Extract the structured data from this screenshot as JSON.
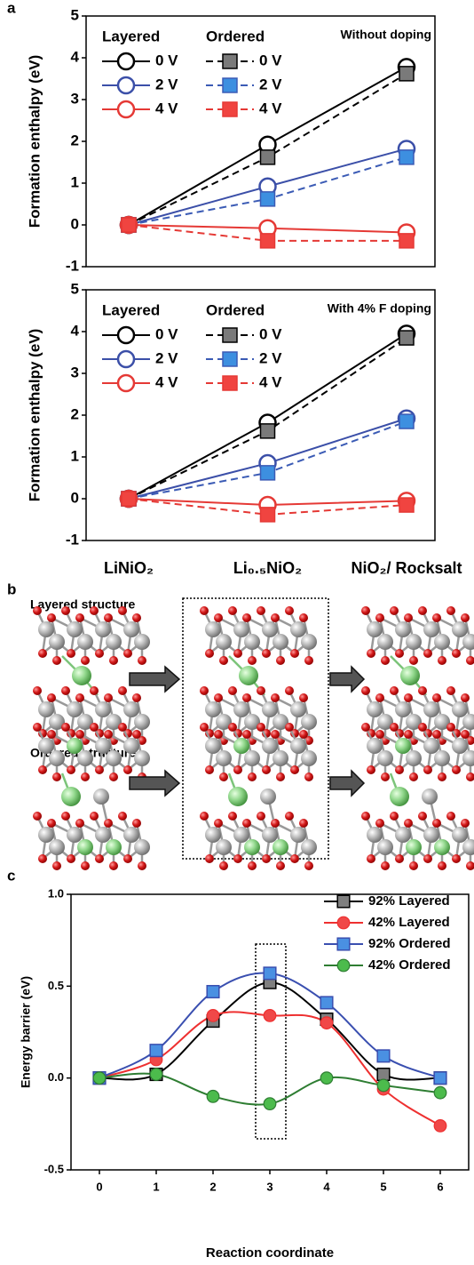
{
  "panel_labels": [
    "a",
    "b",
    "c"
  ],
  "structure_labels": [
    "Layered structure",
    "Ordered structure"
  ],
  "chart_data": [
    {
      "type": "line",
      "annotation": "Without doping",
      "ylabel": "Formation enthalpy (eV)",
      "categories": [
        null,
        null,
        null
      ],
      "legend_titles": [
        "Layered",
        "Ordered"
      ],
      "ylim": [
        -1,
        5
      ],
      "yticks": [
        -1,
        0,
        1,
        2,
        3,
        4,
        5
      ],
      "series": [
        {
          "name": "0 V",
          "marker": "open-circle",
          "dashed": false,
          "color": "#000000",
          "values": [
            0,
            1.92,
            3.78
          ]
        },
        {
          "name": "0 V",
          "marker": "square",
          "dashed": true,
          "color": "#000000",
          "marker_color": "#7a7a7a",
          "values": [
            0,
            1.62,
            3.62
          ]
        },
        {
          "name": "2 V",
          "marker": "open-circle",
          "dashed": false,
          "color": "#3b4fa8",
          "values": [
            0,
            0.92,
            1.82
          ]
        },
        {
          "name": "2 V",
          "marker": "square",
          "dashed": true,
          "color": "#3b5bb5",
          "marker_color": "#3d8fe0",
          "values": [
            0,
            0.62,
            1.62
          ]
        },
        {
          "name": "4 V",
          "marker": "open-circle",
          "dashed": false,
          "color": "#e53935",
          "values": [
            0,
            -0.08,
            -0.18
          ]
        },
        {
          "name": "4 V",
          "marker": "square",
          "dashed": true,
          "color": "#e53935",
          "marker_color": "#f04440",
          "values": [
            0,
            -0.38,
            -0.38
          ]
        }
      ]
    },
    {
      "type": "line",
      "annotation": "With 4% F doping",
      "ylabel": "Formation enthalpy (eV)",
      "categories": [
        "LiNiO₂",
        "Li₀.₅NiO₂",
        "NiO₂/ Rocksalt"
      ],
      "legend_titles": [
        "Layered",
        "Ordered"
      ],
      "ylim": [
        -1,
        5
      ],
      "yticks": [
        -1,
        0,
        1,
        2,
        3,
        4,
        5
      ],
      "series": [
        {
          "name": "0 V",
          "marker": "open-circle",
          "dashed": false,
          "color": "#000000",
          "values": [
            0,
            1.82,
            3.95
          ]
        },
        {
          "name": "0 V",
          "marker": "square",
          "dashed": true,
          "color": "#000000",
          "marker_color": "#7a7a7a",
          "values": [
            0,
            1.62,
            3.85
          ]
        },
        {
          "name": "2 V",
          "marker": "open-circle",
          "dashed": false,
          "color": "#3b4fa8",
          "values": [
            0,
            0.85,
            1.92
          ]
        },
        {
          "name": "2 V",
          "marker": "square",
          "dashed": true,
          "color": "#3b5bb5",
          "marker_color": "#3d8fe0",
          "values": [
            0,
            0.62,
            1.85
          ]
        },
        {
          "name": "4 V",
          "marker": "open-circle",
          "dashed": false,
          "color": "#e53935",
          "values": [
            0,
            -0.15,
            -0.05
          ]
        },
        {
          "name": "4 V",
          "marker": "square",
          "dashed": true,
          "color": "#e53935",
          "marker_color": "#f04440",
          "values": [
            0,
            -0.38,
            -0.15
          ]
        }
      ]
    },
    {
      "type": "line",
      "smooth": true,
      "xlabel": "Reaction coordinate",
      "ylabel": "Energy barrier (eV)",
      "x": [
        0,
        1,
        2,
        3,
        4,
        5,
        6
      ],
      "xlim": [
        -0.5,
        6.5
      ],
      "xticks": [
        0,
        1,
        2,
        3,
        4,
        5,
        6
      ],
      "ylim": [
        -0.5,
        1.0
      ],
      "yticks": [
        -0.5,
        {
          "value": 0,
          "label": "0.0"
        },
        0.5,
        {
          "value": 1,
          "label": "1.0"
        }
      ],
      "legend": "upper right",
      "series": [
        {
          "name": "92% Layered",
          "marker": "square",
          "color": "#000000",
          "marker_color": "#7f7f7f",
          "values": [
            0,
            0.02,
            0.31,
            0.52,
            0.32,
            0.02,
            0.0
          ]
        },
        {
          "name": "42% Layered",
          "marker": "circle",
          "color": "#ee3030",
          "marker_color": "#f04848",
          "values": [
            0,
            0.1,
            0.34,
            0.34,
            0.3,
            -0.06,
            -0.26
          ]
        },
        {
          "name": "92% Ordered",
          "marker": "square",
          "color": "#3a4fb0",
          "marker_color": "#4a90e2",
          "values": [
            0,
            0.15,
            0.47,
            0.57,
            0.41,
            0.12,
            0.0
          ]
        },
        {
          "name": "42% Ordered",
          "marker": "circle",
          "color": "#2e7d32",
          "marker_color": "#4cbb4c",
          "values": [
            0,
            0.02,
            -0.1,
            -0.14,
            0,
            -0.04,
            -0.08
          ]
        }
      ]
    }
  ]
}
